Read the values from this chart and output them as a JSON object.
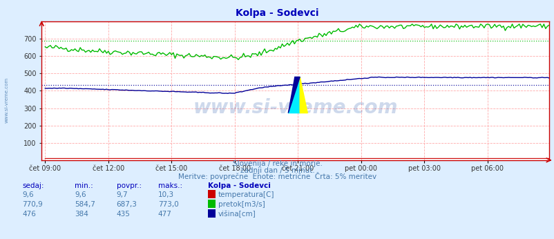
{
  "title": "Kolpa - Sodevci",
  "subtitle1": "Slovenija / reke in morje.",
  "subtitle2": "zadnji dan / 5 minut.",
  "subtitle3": "Meritve: povprečne  Enote: metrične  Črta: 5% meritev",
  "bg_color": "#ddeeff",
  "plot_bg_color": "#ffffff",
  "x_tick_labels": [
    "čet 09:00",
    "čet 12:00",
    "čet 15:00",
    "čet 18:00",
    "čet 21:00",
    "pet 00:00",
    "pet 03:00",
    "pet 06:00"
  ],
  "x_tick_positions": [
    0,
    36,
    72,
    108,
    144,
    180,
    216,
    252
  ],
  "ylim": [
    0,
    800
  ],
  "yticks": [
    100,
    200,
    300,
    400,
    500,
    600,
    700
  ],
  "n_points": 288,
  "temp_color": "#cc0000",
  "flow_color": "#00bb00",
  "level_color": "#000099",
  "flow_avg": 687.3,
  "level_avg": 435,
  "watermark": "www.si-vreme.com",
  "table_header": "Kolpa - Sodevci",
  "col_sedaj": "sedaj:",
  "col_min": "min.:",
  "col_povpr": "povpr.:",
  "col_maks": "maks.:",
  "row1": [
    "9,6",
    "9,6",
    "9,7",
    "10,3",
    "temperatura[C]"
  ],
  "row2": [
    "770,9",
    "584,7",
    "687,3",
    "773,0",
    "pretok[m3/s]"
  ],
  "row3": [
    "476",
    "384",
    "435",
    "477",
    "višina[cm]"
  ]
}
